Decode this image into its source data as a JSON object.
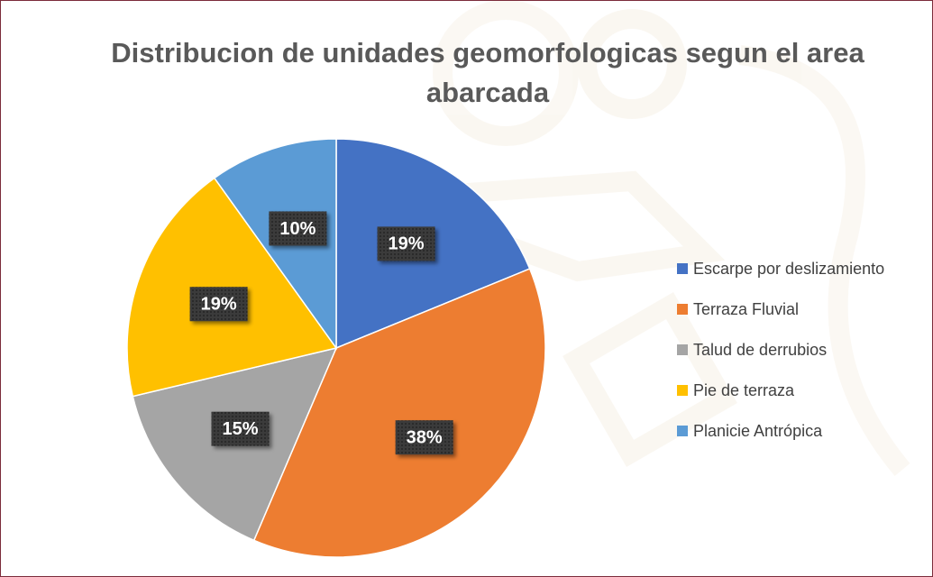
{
  "chart_data": {
    "type": "pie",
    "title": "Distribucion de unidades geomorfologicas segun el area abarcada",
    "categories": [
      "Escarpe por deslizamiento",
      "Terraza Fluvial",
      "Talud de derrubios",
      "Pie de terraza",
      "Planicie Antrópica"
    ],
    "values": [
      19,
      38,
      15,
      19,
      10
    ],
    "value_labels": [
      "19%",
      "38%",
      "15%",
      "19%",
      "10%"
    ],
    "colors": [
      "#4472c4",
      "#ed7d31",
      "#a5a5a5",
      "#ffc000",
      "#5b9bd5"
    ],
    "legend": "right"
  }
}
